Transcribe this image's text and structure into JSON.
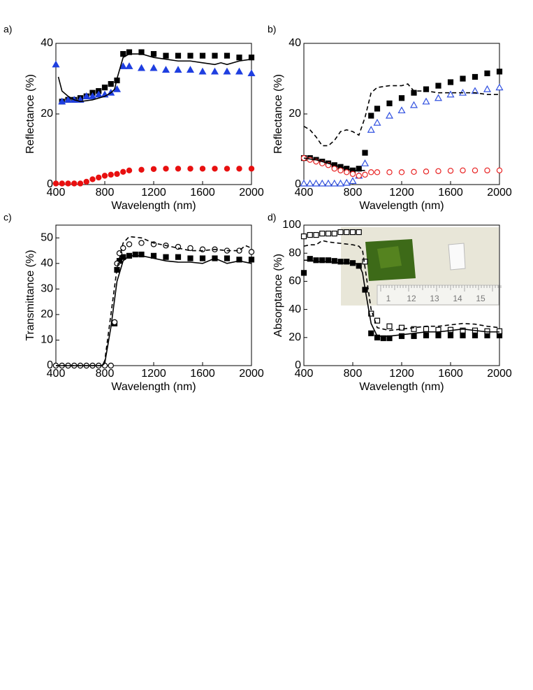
{
  "chart_data": [
    {
      "type": "scatter",
      "label": "a)",
      "x_label": "Wavelength (nm)",
      "y_label": "Reflectance (%)",
      "xlim": [
        400,
        2000
      ],
      "ylim": [
        0,
        40
      ],
      "xticks": [
        400,
        800,
        1200,
        1600,
        2000
      ],
      "yticks": [
        0,
        20,
        40
      ],
      "series": [
        {
          "color": "#000000",
          "marker": "square",
          "filled": true,
          "x": [
            450,
            500,
            550,
            600,
            650,
            700,
            750,
            800,
            850,
            900,
            950,
            1000,
            1100,
            1200,
            1300,
            1400,
            1500,
            1600,
            1700,
            1800,
            1900,
            2000
          ],
          "values": [
            23.5,
            24,
            24,
            24.5,
            25,
            26,
            26.5,
            27.5,
            28.5,
            29.5,
            37,
            37.5,
            37.5,
            37,
            36.5,
            36.5,
            36.5,
            36.5,
            36.5,
            36.5,
            36,
            36
          ]
        },
        {
          "color": "#1f3fe0",
          "marker": "triangle",
          "filled": true,
          "x": [
            400,
            450,
            500,
            550,
            600,
            650,
            700,
            750,
            800,
            850,
            900,
            950,
            1000,
            1100,
            1200,
            1300,
            1400,
            1500,
            1600,
            1700,
            1800,
            1900,
            2000
          ],
          "values": [
            34,
            23.5,
            24,
            24,
            24,
            25,
            25,
            25.5,
            25.5,
            26,
            27,
            33.5,
            33.5,
            33,
            33,
            32.5,
            32.5,
            32.5,
            32,
            32,
            32,
            32,
            31.5
          ]
        },
        {
          "color": "#e81010",
          "marker": "circle",
          "filled": true,
          "x": [
            400,
            450,
            500,
            550,
            600,
            650,
            700,
            750,
            800,
            850,
            900,
            950,
            1000,
            1100,
            1200,
            1300,
            1400,
            1500,
            1600,
            1700,
            1800,
            1900,
            2000
          ],
          "values": [
            0.3,
            0.3,
            0.3,
            0.3,
            0.3,
            0.8,
            1.5,
            2,
            2.5,
            2.8,
            3,
            3.6,
            4,
            4.2,
            4.4,
            4.5,
            4.5,
            4.5,
            4.5,
            4.5,
            4.5,
            4.5,
            4.5
          ]
        },
        {
          "color": "#000000",
          "line": "solid",
          "x": [
            420,
            450,
            500,
            550,
            600,
            700,
            800,
            850,
            880,
            900,
            950,
            1000,
            1100,
            1200,
            1300,
            1400,
            1500,
            1600,
            1700,
            1750,
            1800,
            1900,
            2000
          ],
          "values": [
            30.5,
            26.5,
            25,
            24,
            23.5,
            24,
            25,
            26,
            27,
            30,
            36,
            37,
            37,
            36,
            35.5,
            35,
            35,
            34.5,
            34,
            34.5,
            34,
            35,
            35.5
          ]
        }
      ]
    },
    {
      "type": "scatter",
      "label": "b)",
      "x_label": "Wavelength (nm)",
      "y_label": "Reflectance (%)",
      "xlim": [
        400,
        2000
      ],
      "ylim": [
        0,
        40
      ],
      "xticks": [
        400,
        800,
        1200,
        1600,
        2000
      ],
      "yticks": [
        0,
        20,
        40
      ],
      "series": [
        {
          "color": "#000000",
          "marker": "square",
          "filled": true,
          "x": [
            400,
            450,
            500,
            550,
            600,
            650,
            700,
            750,
            800,
            850,
            900,
            950,
            1000,
            1100,
            1200,
            1300,
            1400,
            1500,
            1600,
            1700,
            1800,
            1900,
            2000
          ],
          "values": [
            7.5,
            7.5,
            7,
            6.5,
            6,
            5.5,
            5,
            4.5,
            4,
            4.5,
            9,
            19.5,
            21.5,
            23,
            24.5,
            26,
            27,
            28,
            29,
            30,
            30.5,
            31.5,
            32
          ]
        },
        {
          "color": "#3050e0",
          "marker": "triangle",
          "filled": false,
          "x": [
            400,
            450,
            500,
            550,
            600,
            650,
            700,
            750,
            800,
            850,
            900,
            950,
            1000,
            1100,
            1200,
            1300,
            1400,
            1500,
            1600,
            1700,
            1800,
            1900,
            2000
          ],
          "values": [
            0.3,
            0.3,
            0.3,
            0.3,
            0.3,
            0.3,
            0.3,
            0.5,
            1,
            2.5,
            6,
            15.5,
            17.5,
            19.5,
            21,
            22.5,
            23.5,
            24.5,
            25.5,
            26,
            26.5,
            27,
            27.5
          ]
        },
        {
          "color": "#e82020",
          "marker": "circle",
          "filled": false,
          "x": [
            400,
            450,
            500,
            550,
            600,
            650,
            700,
            750,
            800,
            850,
            900,
            950,
            1000,
            1100,
            1200,
            1300,
            1400,
            1500,
            1600,
            1700,
            1800,
            1900,
            2000
          ],
          "values": [
            7.5,
            7,
            6.5,
            6,
            5.5,
            4.5,
            4,
            3.5,
            3,
            2.5,
            2.8,
            3.5,
            3.5,
            3.5,
            3.5,
            3.6,
            3.7,
            3.8,
            3.9,
            4,
            4,
            4,
            4
          ]
        },
        {
          "color": "#000000",
          "line": "solid",
          "x": [
            400,
            500,
            600,
            700,
            800,
            850,
            900
          ],
          "values": [
            7.5,
            7,
            6,
            5,
            4,
            4,
            4
          ]
        },
        {
          "color": "#000000",
          "line": "dashed",
          "x": [
            400,
            450,
            500,
            550,
            600,
            650,
            700,
            750,
            800,
            850,
            900,
            950,
            1000,
            1100,
            1200,
            1250,
            1300,
            1400,
            1500,
            1600,
            1700,
            1800,
            1900,
            2000
          ],
          "values": [
            16.5,
            15.5,
            13.5,
            11,
            11,
            12.5,
            15,
            15.5,
            15,
            14,
            19,
            26,
            27.5,
            28,
            28,
            28.5,
            26.5,
            26.5,
            26,
            26,
            26,
            26,
            25.5,
            25.5
          ]
        }
      ]
    },
    {
      "type": "scatter",
      "label": "c)",
      "x_label": "Wavelength (nm)",
      "y_label": "Transmittance (%)",
      "xlim": [
        400,
        2000
      ],
      "ylim": [
        0,
        55
      ],
      "xticks": [
        400,
        800,
        1200,
        1600,
        2000
      ],
      "yticks": [
        0,
        10,
        20,
        30,
        40,
        50
      ],
      "series": [
        {
          "color": "#000000",
          "marker": "square",
          "filled": true,
          "x": [
            880,
            900,
            920,
            950,
            1000,
            1050,
            1100,
            1200,
            1300,
            1400,
            1500,
            1600,
            1700,
            1800,
            1900,
            2000
          ],
          "values": [
            16.5,
            37.5,
            41,
            42.5,
            43,
            43.5,
            43.5,
            43,
            42.5,
            42.5,
            42,
            42,
            42,
            42,
            41.5,
            41.5
          ]
        },
        {
          "color": "#000000",
          "marker": "circle",
          "filled": false,
          "x": [
            400,
            450,
            500,
            550,
            600,
            650,
            700,
            750,
            800,
            850,
            880,
            900,
            920,
            950,
            1000,
            1100,
            1200,
            1300,
            1400,
            1500,
            1600,
            1700,
            1800,
            1900,
            2000
          ],
          "values": [
            0,
            0,
            0,
            0,
            0,
            0,
            0,
            0,
            0,
            0,
            17,
            40,
            44,
            46,
            47.5,
            48,
            47.5,
            47,
            46.5,
            46,
            45.5,
            45.5,
            45,
            45,
            44.5
          ]
        },
        {
          "color": "#000000",
          "line": "solid",
          "x": [
            400,
            780,
            800,
            850,
            900,
            950,
            1000,
            1100,
            1200,
            1300,
            1400,
            1500,
            1600,
            1700,
            1800,
            1900,
            2000
          ],
          "values": [
            0,
            0,
            1,
            15,
            33,
            41,
            43,
            43,
            42,
            41,
            40.5,
            40.5,
            40,
            42,
            40,
            41,
            40
          ]
        },
        {
          "color": "#000000",
          "line": "dashed",
          "x": [
            400,
            780,
            800,
            850,
            900,
            950,
            1000,
            1100,
            1200,
            1300,
            1400,
            1500,
            1600,
            1700,
            1800,
            1900,
            1950,
            2000
          ],
          "values": [
            0,
            0,
            2,
            20,
            38,
            48,
            50.5,
            50,
            48,
            47,
            46,
            45,
            45,
            45.5,
            45,
            45,
            47,
            46
          ]
        }
      ]
    },
    {
      "type": "scatter",
      "label": "d)",
      "x_label": "Wavelength (nm)",
      "y_label": "Absorptance (%)",
      "xlim": [
        400,
        2000
      ],
      "ylim": [
        0,
        100
      ],
      "xticks": [
        400,
        800,
        1200,
        1600,
        2000
      ],
      "yticks": [
        0,
        20,
        40,
        60,
        80,
        100
      ],
      "inset_ruler_labels": [
        "1",
        "12",
        "13",
        "14",
        "15"
      ],
      "series": [
        {
          "color": "#000000",
          "marker": "square",
          "filled": true,
          "x": [
            400,
            450,
            500,
            550,
            600,
            650,
            700,
            750,
            800,
            850,
            900,
            950,
            1000,
            1050,
            1100,
            1200,
            1300,
            1400,
            1500,
            1600,
            1700,
            1800,
            1900,
            2000
          ],
          "values": [
            66,
            76,
            75,
            75,
            75,
            74.5,
            74,
            74,
            73,
            71,
            54,
            23,
            20,
            19.5,
            19.5,
            21,
            21,
            21.5,
            21.5,
            21.5,
            21.5,
            21.5,
            21.5,
            21.5
          ]
        },
        {
          "color": "#000000",
          "marker": "square",
          "filled": false,
          "x": [
            400,
            450,
            500,
            550,
            600,
            650,
            700,
            750,
            800,
            850,
            900,
            950,
            1000,
            1100,
            1200,
            1300,
            1400,
            1500,
            1600,
            1700,
            1800,
            1900,
            2000
          ],
          "values": [
            92,
            93,
            93,
            94,
            94,
            94,
            95,
            95,
            95,
            95,
            74,
            37,
            32,
            28,
            27,
            26,
            26,
            25.5,
            25.5,
            25,
            25,
            24.5,
            24.5
          ]
        },
        {
          "color": "#000000",
          "line": "solid",
          "x": [
            400,
            450,
            500,
            600,
            700,
            800,
            850,
            880,
            900,
            950,
            1000,
            1100,
            1200,
            1300,
            1400,
            1500,
            1600,
            1700,
            1800,
            1900,
            2000
          ],
          "values": [
            75,
            75,
            74,
            74,
            73,
            73,
            72,
            66,
            55,
            30,
            21,
            21,
            22,
            23,
            24,
            24,
            25,
            26,
            25,
            24,
            24
          ]
        },
        {
          "color": "#000000",
          "line": "dashed",
          "x": [
            400,
            450,
            500,
            550,
            600,
            700,
            800,
            850,
            880,
            900,
            950,
            1000,
            1100,
            1200,
            1300,
            1400,
            1500,
            1600,
            1700,
            1800,
            1900,
            2000
          ],
          "values": [
            85,
            86,
            86,
            89,
            88,
            87,
            86,
            85,
            82,
            70,
            40,
            27,
            25,
            26,
            27,
            28,
            28,
            29,
            30,
            29.5,
            28,
            27
          ]
        }
      ]
    }
  ]
}
